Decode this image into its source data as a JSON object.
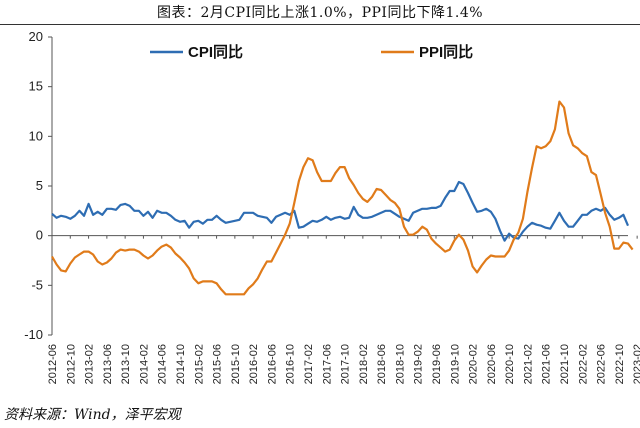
{
  "title": "图表：2月CPI同比上涨1.0%，PPI同比下降1.4%",
  "source": "资料来源：Wind，泽平宏观",
  "chart_data": {
    "type": "line",
    "x_start": "2012-06",
    "x_end": "2023-02",
    "x_tick_labels": [
      "2012-06",
      "2012-10",
      "2013-02",
      "2013-06",
      "2013-10",
      "2014-02",
      "2014-06",
      "2014-10",
      "2015-02",
      "2015-06",
      "2015-10",
      "2016-02",
      "2016-06",
      "2016-10",
      "2017-02",
      "2017-06",
      "2017-10",
      "2018-02",
      "2018-06",
      "2018-10",
      "2019-02",
      "2019-06",
      "2019-10",
      "2020-02",
      "2020-06",
      "2020-10",
      "2021-02",
      "2021-06",
      "2021-10",
      "2022-02",
      "2022-06",
      "2022-10",
      "2023-02"
    ],
    "y_ticks": [
      20,
      15,
      10,
      5,
      0,
      -5,
      -10
    ],
    "ylim": [
      -10,
      20
    ],
    "grid": false,
    "legend_position": "top",
    "series": [
      {
        "name": "CPI同比",
        "color": "#2e6db3",
        "values": [
          2.2,
          1.8,
          2.0,
          1.9,
          1.7,
          2.0,
          2.5,
          2.0,
          3.2,
          2.1,
          2.4,
          2.1,
          2.7,
          2.7,
          2.6,
          3.1,
          3.2,
          3.0,
          2.5,
          2.5,
          2.0,
          2.4,
          1.8,
          2.5,
          2.3,
          2.3,
          2.0,
          1.6,
          1.4,
          1.5,
          0.8,
          1.4,
          1.5,
          1.2,
          1.6,
          1.6,
          2.0,
          1.6,
          1.3,
          1.4,
          1.5,
          1.6,
          2.3,
          2.3,
          2.3,
          2.0,
          1.9,
          1.8,
          1.3,
          1.9,
          2.1,
          2.3,
          2.1,
          2.5,
          0.8,
          0.9,
          1.2,
          1.5,
          1.4,
          1.6,
          1.9,
          1.6,
          1.8,
          1.9,
          1.7,
          1.8,
          2.9,
          2.1,
          1.8,
          1.8,
          1.9,
          2.1,
          2.3,
          2.5,
          2.5,
          2.2,
          1.9,
          1.7,
          1.5,
          2.3,
          2.5,
          2.7,
          2.7,
          2.8,
          2.8,
          3.0,
          3.8,
          4.5,
          4.5,
          5.4,
          5.2,
          4.3,
          3.3,
          2.4,
          2.5,
          2.7,
          2.4,
          1.7,
          0.5,
          -0.5,
          0.2,
          -0.2,
          -0.3,
          0.4,
          0.9,
          1.3,
          1.1,
          1.0,
          0.8,
          0.7,
          1.5,
          2.3,
          1.5,
          0.9,
          0.9,
          1.5,
          2.1,
          2.1,
          2.5,
          2.7,
          2.5,
          2.8,
          2.1,
          1.6,
          1.8,
          2.1,
          1.0
        ]
      },
      {
        "name": "PPI同比",
        "color": "#e07b1a",
        "values": [
          -2.1,
          -2.9,
          -3.5,
          -3.6,
          -2.8,
          -2.2,
          -1.9,
          -1.6,
          -1.6,
          -1.9,
          -2.6,
          -2.9,
          -2.7,
          -2.3,
          -1.7,
          -1.4,
          -1.5,
          -1.4,
          -1.4,
          -1.6,
          -2.0,
          -2.3,
          -2.0,
          -1.5,
          -1.1,
          -0.9,
          -1.2,
          -1.8,
          -2.2,
          -2.7,
          -3.3,
          -4.3,
          -4.8,
          -4.6,
          -4.6,
          -4.6,
          -4.8,
          -5.4,
          -5.9,
          -5.9,
          -5.9,
          -5.9,
          -5.9,
          -5.3,
          -4.9,
          -4.3,
          -3.4,
          -2.6,
          -2.6,
          -1.7,
          -0.8,
          0.1,
          1.2,
          3.3,
          5.5,
          6.9,
          7.8,
          7.6,
          6.4,
          5.5,
          5.5,
          5.5,
          6.3,
          6.9,
          6.9,
          5.8,
          5.1,
          4.3,
          3.7,
          3.4,
          3.9,
          4.7,
          4.6,
          4.1,
          3.6,
          3.3,
          2.7,
          0.9,
          0.1,
          0.1,
          0.4,
          0.9,
          0.6,
          -0.3,
          -0.8,
          -1.2,
          -1.6,
          -1.4,
          -0.5,
          0.1,
          -0.4,
          -1.5,
          -3.1,
          -3.7,
          -3.0,
          -2.4,
          -2.0,
          -2.1,
          -2.1,
          -2.1,
          -1.5,
          -0.4,
          0.3,
          1.7,
          4.4,
          6.8,
          9.0,
          8.8,
          9.0,
          9.5,
          10.7,
          13.5,
          12.9,
          10.3,
          9.1,
          8.8,
          8.3,
          8.0,
          6.4,
          6.1,
          4.2,
          2.3,
          0.9,
          -1.3,
          -1.3,
          -0.7,
          -0.8,
          -1.4
        ]
      }
    ]
  }
}
